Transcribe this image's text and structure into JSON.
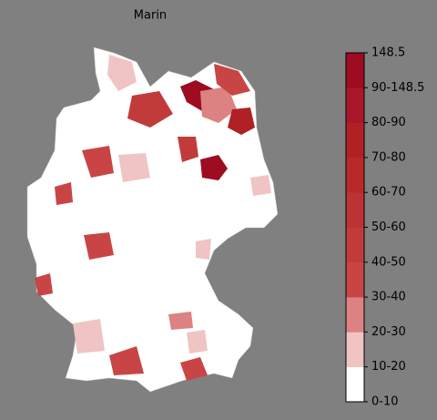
{
  "title": "Marin",
  "colorbar": {
    "labels": [
      "0-10",
      "10-20",
      "20-30",
      "30-40",
      "40-50",
      "50-60",
      "60-70",
      "70-80",
      "80-90",
      "90-148.5",
      "148.5"
    ],
    "colors": [
      "#ffffff",
      "#f0c4c4",
      "#dc8282",
      "#c94545",
      "#c23b3b",
      "#bd3232",
      "#b82a2a",
      "#b02126",
      "#a8182a",
      "#9e0c22"
    ]
  }
}
